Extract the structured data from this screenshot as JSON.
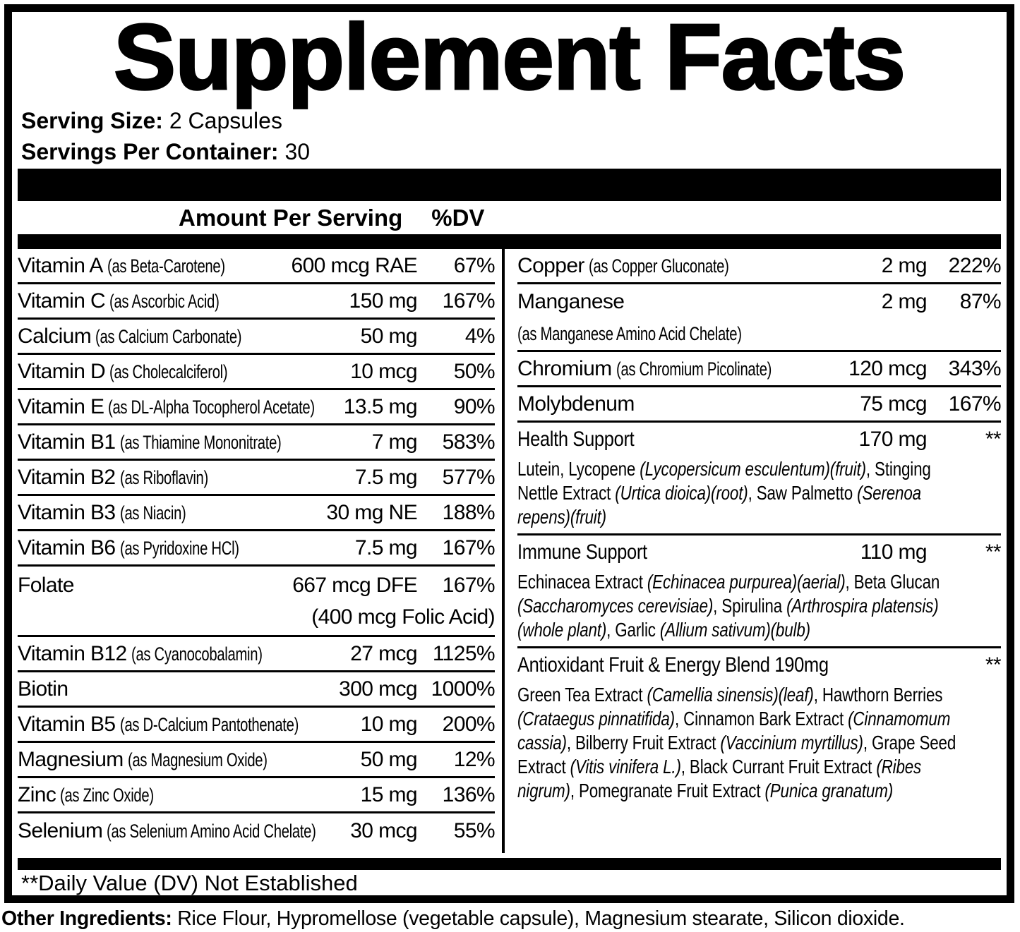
{
  "panel": {
    "title": "Supplement Facts",
    "serving_size_label": "Serving Size:",
    "serving_size_value": "2 Capsules",
    "servings_per_container_label": "Servings Per Container:",
    "servings_per_container_value": "30",
    "amount_header": "Amount Per Serving",
    "dv_header": "%DV",
    "footnote": "**Daily Value (DV) Not Established"
  },
  "colors": {
    "ink": "#000000",
    "paper": "#ffffff"
  },
  "nutrients_left": [
    {
      "name": "Vitamin A",
      "form": "(as Beta-Carotene)",
      "amount": "600 mcg RAE",
      "dv": "67%"
    },
    {
      "name": "Vitamin C",
      "form": "(as Ascorbic Acid)",
      "amount": "150 mg",
      "dv": "167%"
    },
    {
      "name": "Calcium",
      "form": "(as Calcium Carbonate)",
      "amount": "50 mg",
      "dv": "4%"
    },
    {
      "name": "Vitamin D",
      "form": "(as Cholecalciferol)",
      "amount": "10 mcg",
      "dv": "50%"
    },
    {
      "name": "Vitamin E",
      "form": "(as DL-Alpha Tocopherol Acetate)",
      "amount": "13.5 mg",
      "dv": "90%"
    },
    {
      "name": "Vitamin B1",
      "form": "(as Thiamine Mononitrate)",
      "amount": "7 mg",
      "dv": "583%"
    },
    {
      "name": "Vitamin B2",
      "form": "(as Riboflavin)",
      "amount": "7.5 mg",
      "dv": "577%"
    },
    {
      "name": "Vitamin B3",
      "form": "(as Niacin)",
      "amount": "30 mg NE",
      "dv": "188%"
    },
    {
      "name": "Vitamin B6",
      "form": "(as Pyridoxine HCl)",
      "amount": "7.5 mg",
      "dv": "167%"
    },
    {
      "name": "Folate",
      "form": "",
      "amount": "667 mcg DFE",
      "amount2": "(400 mcg Folic Acid)",
      "dv": "167%"
    },
    {
      "name": "Vitamin B12",
      "form": "(as Cyanocobalamin)",
      "amount": "27 mcg",
      "dv": "1125%"
    },
    {
      "name": "Biotin",
      "form": "",
      "amount": "300 mcg",
      "dv": "1000%"
    },
    {
      "name": "Vitamin B5",
      "form": "(as D-Calcium Pantothenate)",
      "amount": "10 mg",
      "dv": "200%"
    },
    {
      "name": "Magnesium",
      "form": "(as Magnesium Oxide)",
      "amount": "50 mg",
      "dv": "12%"
    },
    {
      "name": "Zinc",
      "form": "(as Zinc Oxide)",
      "amount": "15 mg",
      "dv": "136%"
    },
    {
      "name": "Selenium",
      "form": "(as Selenium Amino Acid Chelate)",
      "amount": "30 mcg",
      "dv": "55%"
    }
  ],
  "nutrients_right": [
    {
      "name": "Copper",
      "form": "(as Copper Gluconate)",
      "amount": "2 mg",
      "dv": "222%"
    },
    {
      "name": "Manganese",
      "form2": "(as Manganese Amino Acid Chelate)",
      "amount": "2 mg",
      "dv": "87%"
    },
    {
      "name": "Chromium",
      "form": "(as Chromium Picolinate)",
      "amount": "120 mcg",
      "dv": "343%"
    },
    {
      "name": "Molybdenum",
      "form": "",
      "amount": "75 mcg",
      "dv": "167%"
    }
  ],
  "blends": [
    {
      "title": "Health Support",
      "amount": "170 mg",
      "dv": "**",
      "desc": [
        {
          "t": "Lutein, Lycopene ",
          "i": false
        },
        {
          "t": "(Lycopersicum esculentum)(fruit)",
          "i": true
        },
        {
          "t": ", Stinging Nettle Extract ",
          "i": false
        },
        {
          "t": "(Urtica dioica)(root)",
          "i": true
        },
        {
          "t": ", Saw Palmetto ",
          "i": false
        },
        {
          "t": "(Serenoa repens)(fruit)",
          "i": true
        }
      ]
    },
    {
      "title": "Immune Support",
      "amount": "110 mg",
      "dv": "**",
      "desc": [
        {
          "t": "Echinacea Extract ",
          "i": false
        },
        {
          "t": "(Echinacea purpurea)(aerial)",
          "i": true
        },
        {
          "t": ", Beta Glucan ",
          "i": false
        },
        {
          "t": "(Saccharomyces cerevisiae)",
          "i": true
        },
        {
          "t": ", Spirulina ",
          "i": false
        },
        {
          "t": "(Arthrospira platensis)(whole plant)",
          "i": true
        },
        {
          "t": ", Garlic ",
          "i": false
        },
        {
          "t": "(Allium sativum)(bulb)",
          "i": true
        }
      ]
    },
    {
      "title": "Antioxidant Fruit & Energy Blend 190mg",
      "amount": "",
      "dv": "**",
      "desc": [
        {
          "t": "Green Tea Extract ",
          "i": false
        },
        {
          "t": "(Camellia sinensis)(leaf)",
          "i": true
        },
        {
          "t": ", Hawthorn Berries ",
          "i": false
        },
        {
          "t": "(Crataegus pinnatifida)",
          "i": true
        },
        {
          "t": ", Cinnamon Bark Extract ",
          "i": false
        },
        {
          "t": "(Cinnamomum cassia)",
          "i": true
        },
        {
          "t": ", Bilberry Fruit Extract ",
          "i": false
        },
        {
          "t": "(Vaccinium myrtillus)",
          "i": true
        },
        {
          "t": ", Grape Seed Extract ",
          "i": false
        },
        {
          "t": "(Vitis vinifera L.)",
          "i": true
        },
        {
          "t": ", Black Currant Fruit Extract ",
          "i": false
        },
        {
          "t": "(Ribes nigrum)",
          "i": true
        },
        {
          "t": ", Pomegranate Fruit Extract ",
          "i": false
        },
        {
          "t": "(Punica granatum)",
          "i": true
        }
      ]
    }
  ],
  "other_ingredients": {
    "label": "Other Ingredients:",
    "value": "Rice Flour, Hypromellose (vegetable capsule), Magnesium stearate, Silicon dioxide."
  }
}
